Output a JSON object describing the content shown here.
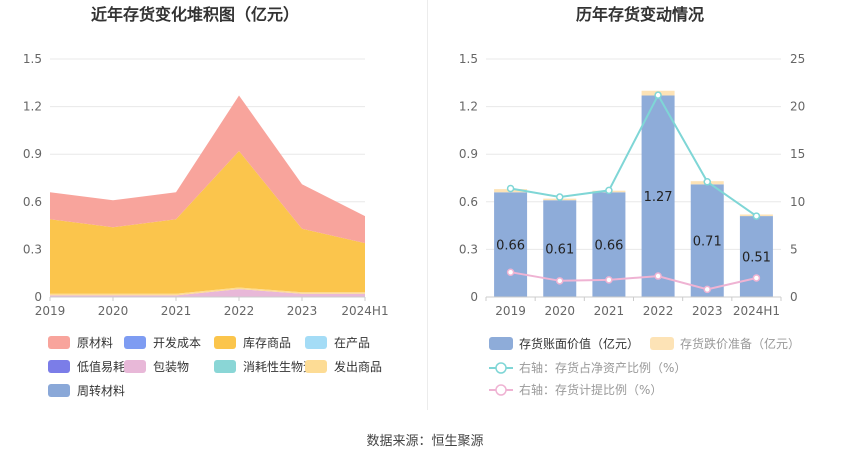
{
  "chart_data": [
    {
      "type": "area",
      "title": "近年存货变化堆积图（亿元）",
      "categories": [
        "2019",
        "2020",
        "2021",
        "2022",
        "2023",
        "2024H1"
      ],
      "ylim": [
        0,
        1.5
      ],
      "yticks": [
        "0",
        "0.3",
        "0.6",
        "0.9",
        "1.2",
        "1.5"
      ],
      "grid": true,
      "legend_position": "bottom",
      "series": [
        {
          "name": "原材料",
          "color": "#f8a49c",
          "values": [
            0.17,
            0.17,
            0.17,
            0.35,
            0.28,
            0.17
          ]
        },
        {
          "name": "开发成本",
          "color": "#7e9cf2",
          "values": [
            0,
            0,
            0,
            0,
            0,
            0
          ]
        },
        {
          "name": "库存商品",
          "color": "#fbc54c",
          "values": [
            0.47,
            0.42,
            0.47,
            0.86,
            0.4,
            0.31
          ]
        },
        {
          "name": "在产品",
          "color": "#a4dcf6",
          "values": [
            0,
            0,
            0,
            0,
            0,
            0
          ]
        },
        {
          "name": "低值易耗品",
          "color": "#7b7de8",
          "values": [
            0,
            0,
            0,
            0,
            0,
            0
          ]
        },
        {
          "name": "包装物",
          "color": "#e8b8d8",
          "values": [
            0.01,
            0.01,
            0.01,
            0.05,
            0.02,
            0.02
          ]
        },
        {
          "name": "消耗性生物资产",
          "color": "#8ad6d6",
          "values": [
            0,
            0,
            0,
            0,
            0,
            0
          ]
        },
        {
          "name": "发出商品",
          "color": "#fddc95",
          "values": [
            0.01,
            0.01,
            0.01,
            0.01,
            0.01,
            0.01
          ]
        },
        {
          "name": "周转材料",
          "color": "#8aa8d8",
          "values": [
            0,
            0,
            0,
            0,
            0,
            0
          ]
        }
      ]
    },
    {
      "type": "bar",
      "title": "历年存货变动情况",
      "categories": [
        "2019",
        "2020",
        "2021",
        "2022",
        "2023",
        "2024H1"
      ],
      "ylim": [
        0,
        1.5
      ],
      "yticks": [
        "0",
        "0.3",
        "0.6",
        "0.9",
        "1.2",
        "1.5"
      ],
      "y2lim": [
        0,
        25
      ],
      "y2ticks": [
        "0",
        "5",
        "10",
        "15",
        "20",
        "25"
      ],
      "grid": true,
      "legend_position": "bottom",
      "series": [
        {
          "name": "存货账面价值（亿元）",
          "kind": "bar",
          "color": "#8eacd9",
          "values": [
            0.66,
            0.61,
            0.66,
            1.27,
            0.71,
            0.51
          ],
          "labels": [
            "0.66",
            "0.61",
            "0.66",
            "1.27",
            "0.71",
            "0.51"
          ]
        },
        {
          "name": "存货跌价准备（亿元）",
          "kind": "bar",
          "color": "#fde3b6",
          "values": [
            0.02,
            0.01,
            0.01,
            0.03,
            0.02,
            0.01
          ]
        },
        {
          "name": "右轴：存货占净资产比例（%）",
          "kind": "line",
          "axis": "right",
          "color": "#7fd6d6",
          "values": [
            11.4,
            10.5,
            11.2,
            21.2,
            12.1,
            8.5
          ]
        },
        {
          "name": "右轴：存货计提比例（%）",
          "kind": "line",
          "axis": "right",
          "color": "#efb3d3",
          "values": [
            2.6,
            1.7,
            1.8,
            2.2,
            0.8,
            2.0
          ]
        }
      ]
    }
  ],
  "footer": {
    "source": "数据来源：恒生聚源"
  }
}
